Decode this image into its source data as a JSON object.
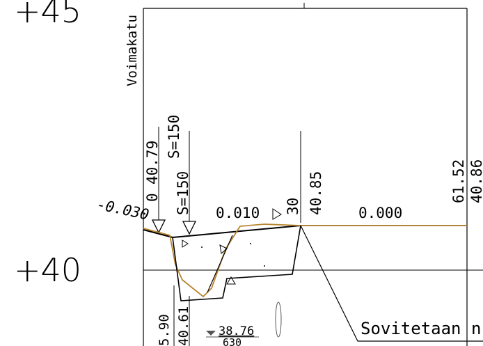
{
  "elevation_labels": {
    "upper": "+45",
    "lower": "+40"
  },
  "street_name": "Voimakatu",
  "markers": {
    "s_label_upper": "S=150",
    "s_label_lower": "S=150"
  },
  "station_labels": {
    "zero": "0",
    "elev_left": "40.79",
    "station_30": "30",
    "elev_30": "40.85",
    "station_end": "61.52",
    "elev_end": "40.86"
  },
  "slopes": {
    "left": "-0.030",
    "mid": "0.010",
    "right": "0.000"
  },
  "bottom_labels": {
    "dim_a": "5.90",
    "dim_b": "40.61",
    "water_level": "38.76",
    "water_sub": "630"
  },
  "note": "Sovitetaan n"
}
